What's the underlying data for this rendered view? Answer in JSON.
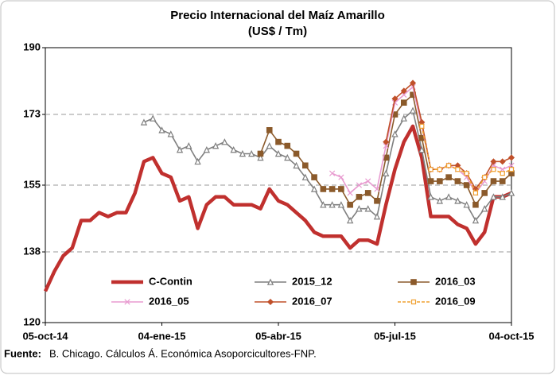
{
  "chart_data": {
    "type": "line",
    "title": "Precio Internacional del Maíz Amarillo",
    "subtitle": "(US$ / Tm)",
    "source_label": "Fuente:",
    "source": "B. Chicago. Cálculos Á. Económica Asoporcicultores-FNP.",
    "x": [
      "2014-10-05",
      "2014-10-12",
      "2014-10-19",
      "2014-10-26",
      "2014-11-02",
      "2014-11-09",
      "2014-11-16",
      "2014-11-23",
      "2014-11-30",
      "2014-12-07",
      "2014-12-14",
      "2014-12-21",
      "2014-12-28",
      "2015-01-04",
      "2015-01-11",
      "2015-01-18",
      "2015-01-25",
      "2015-02-01",
      "2015-02-08",
      "2015-02-15",
      "2015-02-22",
      "2015-03-01",
      "2015-03-08",
      "2015-03-15",
      "2015-03-22",
      "2015-03-29",
      "2015-04-05",
      "2015-04-12",
      "2015-04-19",
      "2015-04-26",
      "2015-05-03",
      "2015-05-10",
      "2015-05-17",
      "2015-05-24",
      "2015-05-31",
      "2015-06-07",
      "2015-06-14",
      "2015-06-21",
      "2015-06-28",
      "2015-07-05",
      "2015-07-12",
      "2015-07-19",
      "2015-07-26",
      "2015-08-02",
      "2015-08-09",
      "2015-08-16",
      "2015-08-23",
      "2015-08-30",
      "2015-09-06",
      "2015-09-13",
      "2015-09-20",
      "2015-09-27",
      "2015-10-04"
    ],
    "xlim": [
      "2014-10-05",
      "2015-10-04"
    ],
    "xticks": [
      {
        "value": "2014-10-05",
        "label": "05-oct-14"
      },
      {
        "value": "2015-01-04",
        "label": "04-ene-15"
      },
      {
        "value": "2015-04-05",
        "label": "05-abr-15"
      },
      {
        "value": "2015-07-05",
        "label": "05-jul-15"
      },
      {
        "value": "2015-10-04",
        "label": "04-oct-15"
      }
    ],
    "ylim": [
      120,
      190
    ],
    "yticks": [
      120,
      138,
      155,
      173,
      190
    ],
    "grid": true,
    "series": [
      {
        "name": "C-Contin",
        "color": "#c0302e",
        "marker": "none",
        "values": [
          128,
          133,
          137,
          139,
          146,
          146,
          148,
          147,
          148,
          148,
          153,
          161,
          162,
          158,
          157,
          151,
          152,
          144,
          150,
          152,
          152,
          150,
          150,
          150,
          149,
          154,
          151,
          150,
          148,
          146,
          143,
          142,
          142,
          142,
          139,
          141,
          141,
          140,
          150,
          159,
          166,
          170,
          162,
          147,
          147,
          147,
          145,
          144,
          140,
          143,
          152,
          152,
          153
        ]
      },
      {
        "name": "2015_12",
        "color": "#7f7f7f",
        "marker": "triangle",
        "values": [
          null,
          null,
          null,
          null,
          null,
          null,
          null,
          null,
          null,
          null,
          null,
          171,
          172,
          169,
          168,
          164,
          165,
          161,
          164,
          165,
          166,
          164,
          163,
          163,
          162,
          165,
          163,
          162,
          160,
          157,
          154,
          150,
          150,
          150,
          146,
          149,
          149,
          147,
          158,
          168,
          172,
          174,
          164,
          152,
          151,
          152,
          151,
          150,
          146,
          149,
          152,
          152,
          153
        ]
      },
      {
        "name": "2016_03",
        "color": "#8b5a2b",
        "marker": "square",
        "values": [
          null,
          null,
          null,
          null,
          null,
          null,
          null,
          null,
          null,
          null,
          null,
          null,
          null,
          null,
          null,
          null,
          null,
          null,
          null,
          null,
          null,
          null,
          null,
          null,
          163,
          169,
          166,
          165,
          163,
          160,
          157,
          154,
          154,
          154,
          150,
          152,
          153,
          151,
          162,
          173,
          176,
          178,
          167,
          156,
          156,
          157,
          156,
          155,
          150,
          153,
          156,
          156,
          158
        ]
      },
      {
        "name": "2016_05",
        "color": "#e89bd0",
        "marker": "x",
        "values": [
          null,
          null,
          null,
          null,
          null,
          null,
          null,
          null,
          null,
          null,
          null,
          null,
          null,
          null,
          null,
          null,
          null,
          null,
          null,
          null,
          null,
          null,
          null,
          null,
          null,
          null,
          null,
          null,
          null,
          null,
          null,
          null,
          158,
          157,
          153,
          155,
          156,
          154,
          165,
          176,
          178,
          180,
          170,
          159,
          159,
          160,
          159,
          157,
          153,
          156,
          160,
          159,
          160
        ]
      },
      {
        "name": "2016_07",
        "color": "#c0502a",
        "marker": "diamond",
        "values": [
          null,
          null,
          null,
          null,
          null,
          null,
          null,
          null,
          null,
          null,
          null,
          null,
          null,
          null,
          null,
          null,
          null,
          null,
          null,
          null,
          null,
          null,
          null,
          null,
          null,
          null,
          null,
          null,
          null,
          null,
          null,
          null,
          null,
          null,
          null,
          null,
          null,
          null,
          166,
          177,
          179,
          181,
          171,
          159,
          159,
          160,
          160,
          158,
          154,
          157,
          161,
          161,
          162
        ]
      },
      {
        "name": "2016_09",
        "color": "#f0a030",
        "marker": "open-square",
        "values": [
          null,
          null,
          null,
          null,
          null,
          null,
          null,
          null,
          null,
          null,
          null,
          null,
          null,
          null,
          null,
          null,
          null,
          null,
          null,
          null,
          null,
          null,
          null,
          null,
          null,
          null,
          null,
          null,
          null,
          null,
          null,
          null,
          null,
          null,
          null,
          null,
          null,
          null,
          null,
          null,
          null,
          null,
          170,
          159,
          159,
          160,
          159,
          158,
          153,
          157,
          159,
          158,
          159
        ]
      }
    ]
  }
}
